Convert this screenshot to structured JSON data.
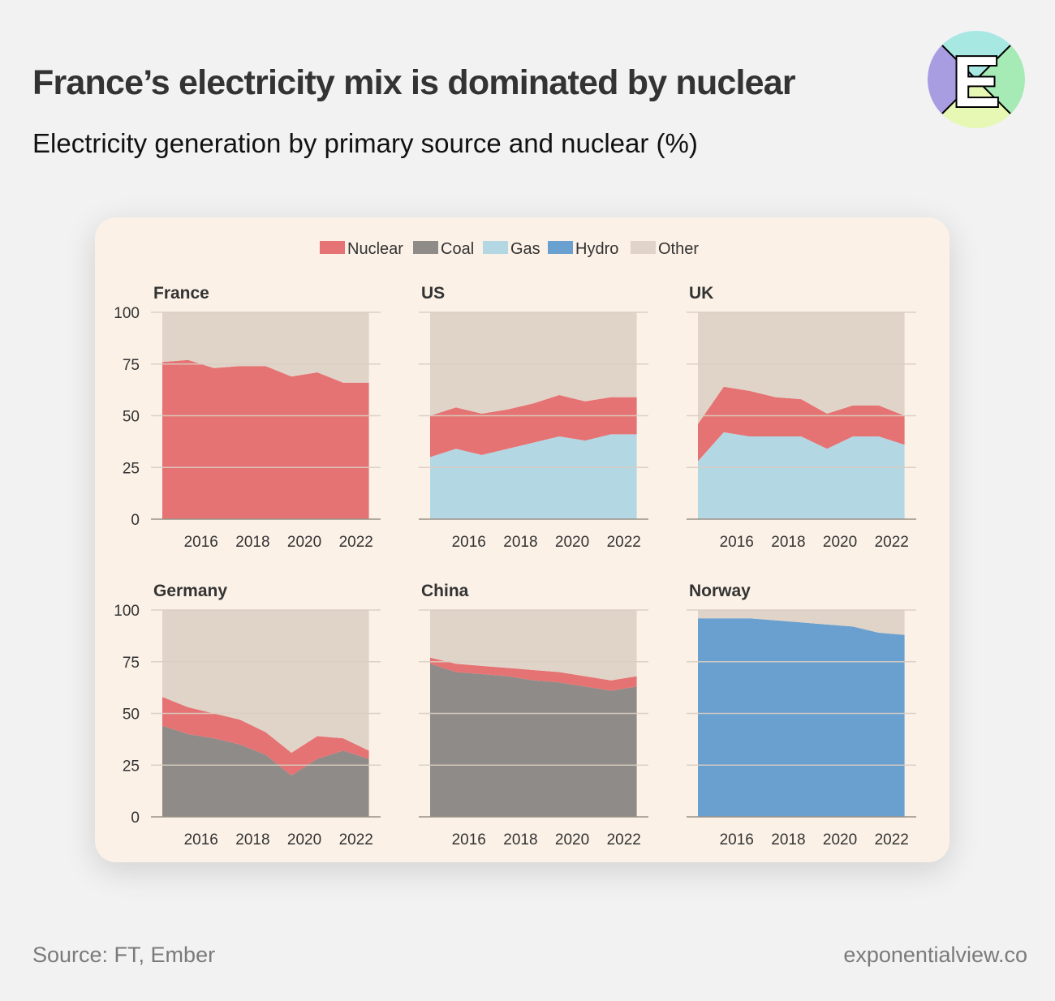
{
  "header": {
    "title": "France’s electricity mix is dominated by nuclear",
    "subtitle": "Electricity generation by primary source and nuclear (%)"
  },
  "logo": {
    "letter": "E",
    "colors": [
      "#a7e8e3",
      "#a6eab6",
      "#e6f8b3",
      "#a99de2"
    ]
  },
  "footer": {
    "source": "Source: FT, Ember",
    "site": "exponentialview.co"
  },
  "colors": {
    "Nuclear": "#e57373",
    "Coal": "#8f8b88",
    "Gas": "#b3d8e4",
    "Hydro": "#6aa0cf",
    "Other": "#e0d4c9",
    "card": "#fbf1e7",
    "grid": "#d9cdc1",
    "axis": "#9a9187",
    "text": "#333333"
  },
  "chart_data": [
    {
      "type": "area",
      "title": "France",
      "stacked": true,
      "x": [
        "2015",
        "2016",
        "2017",
        "2018",
        "2019",
        "2020",
        "2021",
        "2022",
        "2023"
      ],
      "x_ticks": [
        "2016",
        "2018",
        "2020",
        "2022"
      ],
      "ylim": [
        0,
        100
      ],
      "y_ticks": [
        0,
        25,
        50,
        75,
        100
      ],
      "series": [
        {
          "name": "Nuclear",
          "values": [
            76,
            77,
            73,
            74,
            74,
            69,
            71,
            66,
            66
          ]
        },
        {
          "name": "Other",
          "values": [
            24,
            23,
            27,
            26,
            26,
            31,
            29,
            34,
            34
          ]
        }
      ]
    },
    {
      "type": "area",
      "title": "US",
      "stacked": true,
      "x": [
        "2015",
        "2016",
        "2017",
        "2018",
        "2019",
        "2020",
        "2021",
        "2022",
        "2023"
      ],
      "x_ticks": [
        "2016",
        "2018",
        "2020",
        "2022"
      ],
      "ylim": [
        0,
        100
      ],
      "y_ticks": [
        0,
        25,
        50,
        75,
        100
      ],
      "series": [
        {
          "name": "Gas",
          "values": [
            30,
            34,
            31,
            34,
            37,
            40,
            38,
            41,
            41
          ]
        },
        {
          "name": "Nuclear",
          "values": [
            20,
            20,
            20,
            19,
            19,
            20,
            19,
            18,
            18
          ]
        },
        {
          "name": "Other",
          "values": [
            50,
            46,
            49,
            47,
            44,
            40,
            43,
            41,
            41
          ]
        }
      ]
    },
    {
      "type": "area",
      "title": "UK",
      "stacked": true,
      "x": [
        "2015",
        "2016",
        "2017",
        "2018",
        "2019",
        "2020",
        "2021",
        "2022",
        "2023"
      ],
      "x_ticks": [
        "2016",
        "2018",
        "2020",
        "2022"
      ],
      "ylim": [
        0,
        100
      ],
      "y_ticks": [
        0,
        25,
        50,
        75,
        100
      ],
      "series": [
        {
          "name": "Gas",
          "values": [
            28,
            42,
            40,
            40,
            40,
            34,
            40,
            40,
            36
          ]
        },
        {
          "name": "Nuclear",
          "values": [
            18,
            22,
            22,
            19,
            18,
            17,
            15,
            15,
            14
          ]
        },
        {
          "name": "Other",
          "values": [
            54,
            36,
            38,
            41,
            42,
            49,
            45,
            45,
            50
          ]
        }
      ]
    },
    {
      "type": "area",
      "title": "Germany",
      "stacked": true,
      "x": [
        "2015",
        "2016",
        "2017",
        "2018",
        "2019",
        "2020",
        "2021",
        "2022",
        "2023"
      ],
      "x_ticks": [
        "2016",
        "2018",
        "2020",
        "2022"
      ],
      "ylim": [
        0,
        100
      ],
      "y_ticks": [
        0,
        25,
        50,
        75,
        100
      ],
      "series": [
        {
          "name": "Coal",
          "values": [
            44,
            40,
            38,
            35,
            30,
            20,
            28,
            32,
            28
          ]
        },
        {
          "name": "Nuclear",
          "values": [
            14,
            13,
            12,
            12,
            11,
            11,
            11,
            6,
            4
          ]
        },
        {
          "name": "Other",
          "values": [
            42,
            47,
            50,
            53,
            59,
            69,
            61,
            62,
            68
          ]
        }
      ]
    },
    {
      "type": "area",
      "title": "China",
      "stacked": true,
      "x": [
        "2015",
        "2016",
        "2017",
        "2018",
        "2019",
        "2020",
        "2021",
        "2022",
        "2023"
      ],
      "x_ticks": [
        "2016",
        "2018",
        "2020",
        "2022"
      ],
      "ylim": [
        0,
        100
      ],
      "y_ticks": [
        0,
        25,
        50,
        75,
        100
      ],
      "series": [
        {
          "name": "Coal",
          "values": [
            74,
            70,
            69,
            68,
            66,
            65,
            63,
            61,
            63
          ]
        },
        {
          "name": "Nuclear",
          "values": [
            3,
            4,
            4,
            4,
            5,
            5,
            5,
            5,
            5
          ]
        },
        {
          "name": "Other",
          "values": [
            23,
            26,
            27,
            28,
            29,
            30,
            32,
            34,
            32
          ]
        }
      ]
    },
    {
      "type": "area",
      "title": "Norway",
      "stacked": true,
      "x": [
        "2015",
        "2016",
        "2017",
        "2018",
        "2019",
        "2020",
        "2021",
        "2022",
        "2023"
      ],
      "x_ticks": [
        "2016",
        "2018",
        "2020",
        "2022"
      ],
      "ylim": [
        0,
        100
      ],
      "y_ticks": [
        0,
        25,
        50,
        75,
        100
      ],
      "series": [
        {
          "name": "Hydro",
          "values": [
            96,
            96,
            96,
            95,
            94,
            93,
            92,
            89,
            88
          ]
        },
        {
          "name": "Other",
          "values": [
            4,
            4,
            4,
            5,
            6,
            7,
            8,
            11,
            12
          ]
        }
      ]
    }
  ],
  "legend": {
    "placement": "top-center",
    "items": [
      "Nuclear",
      "Coal",
      "Gas",
      "Hydro",
      "Other"
    ]
  }
}
